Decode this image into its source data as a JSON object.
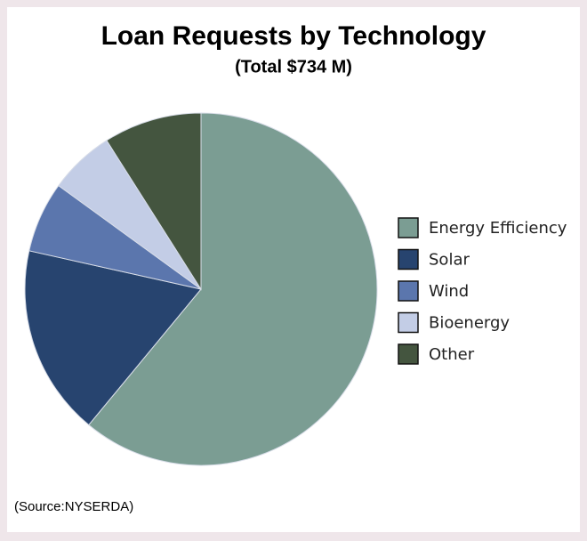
{
  "chart_data": {
    "type": "pie",
    "title": "Loan Requests by Technology",
    "subtitle": "(Total $734 M)",
    "categories": [
      "Energy Efficiency",
      "Solar",
      "Wind",
      "Bioenergy",
      "Other"
    ],
    "values": [
      61,
      17.5,
      6.5,
      6,
      9
    ],
    "colors": [
      "#7b9d93",
      "#27446f",
      "#5b76ad",
      "#c3cde6",
      "#44553f"
    ],
    "legend": "right",
    "source": "(Source:NYSERDA)"
  }
}
